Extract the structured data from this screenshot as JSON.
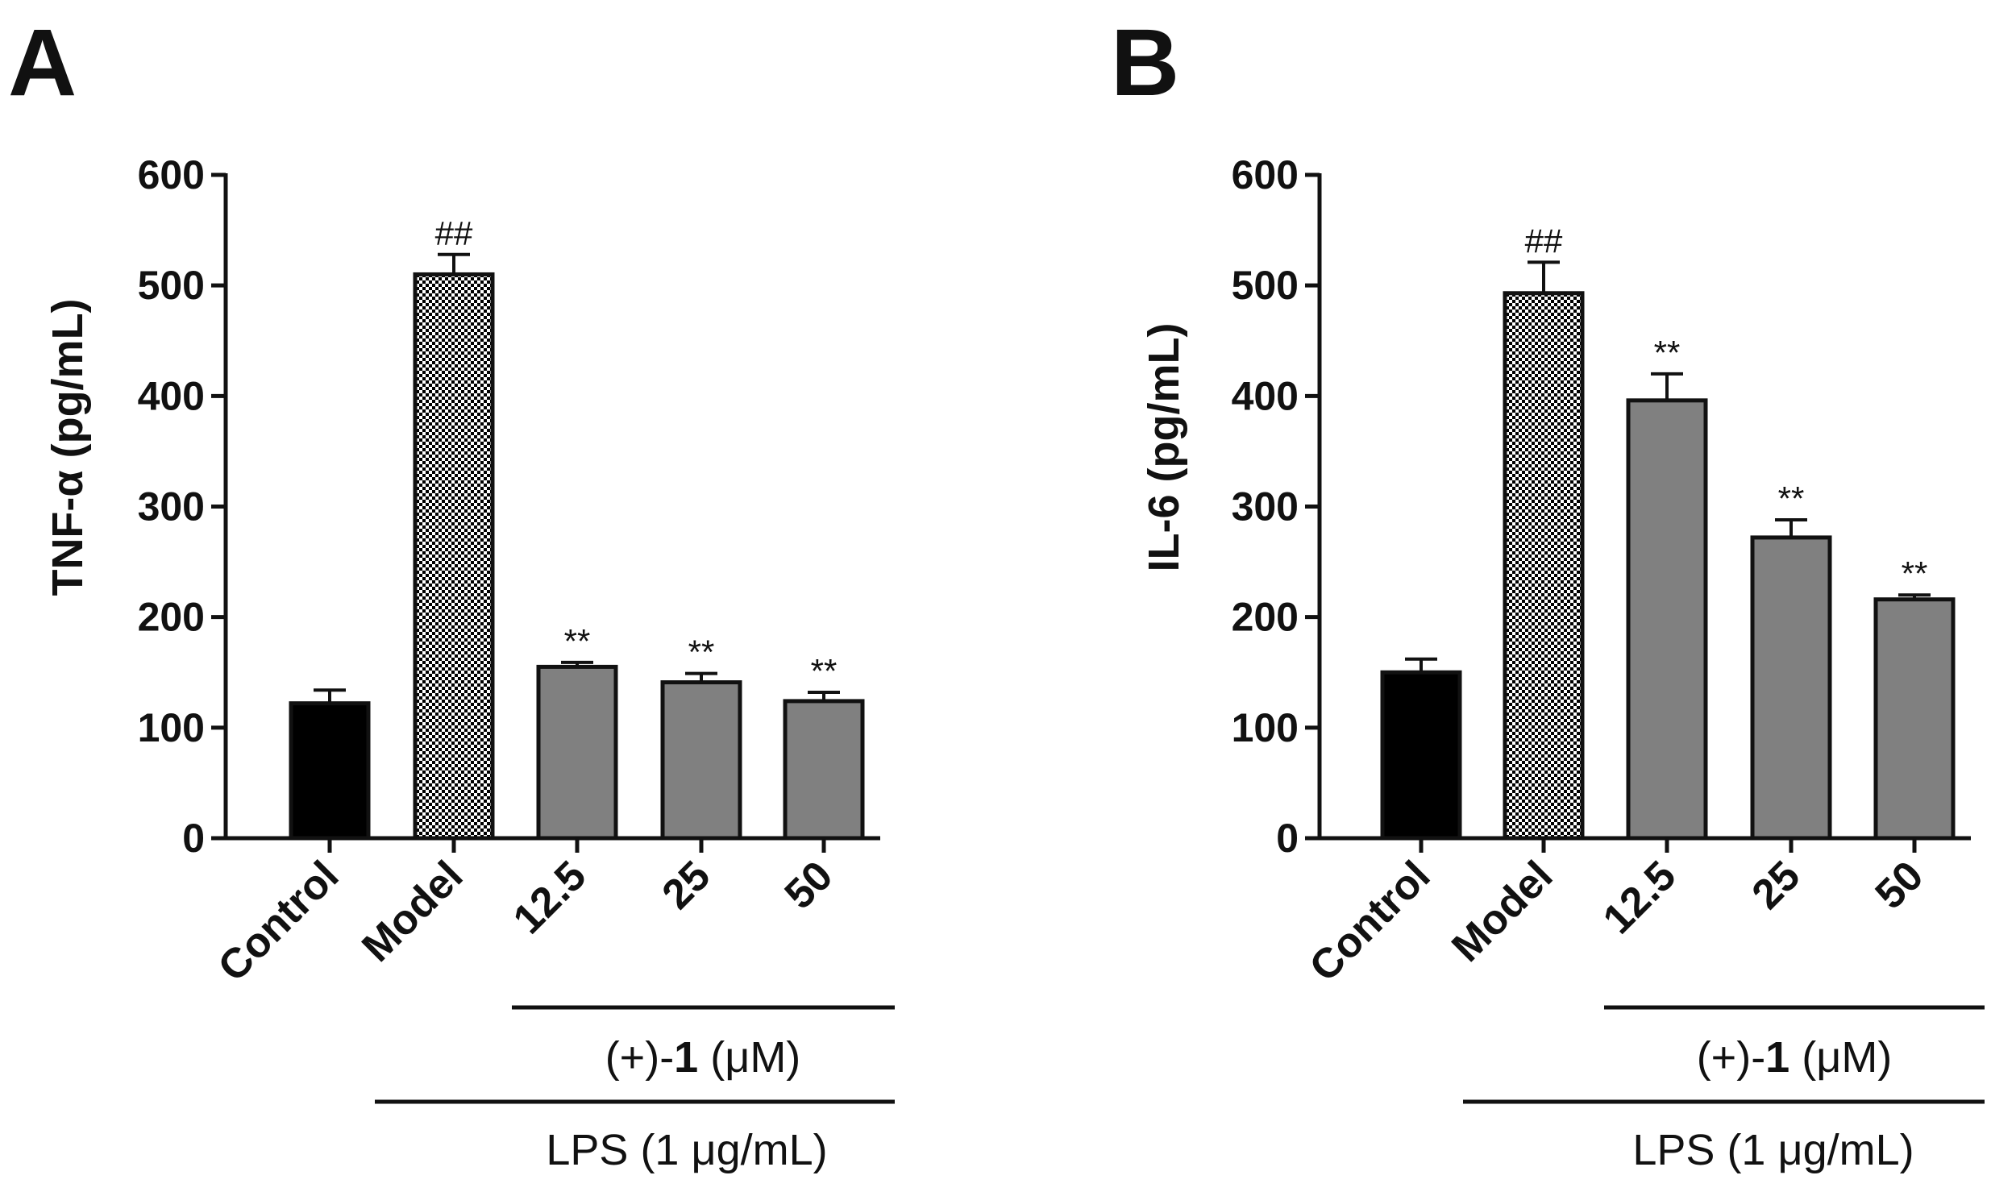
{
  "panels": [
    {
      "letter": "A",
      "ylabel": "TNF-α (pg/mL)",
      "compound_label": {
        "prefix": "(+)-",
        "bold": "1",
        "suffix": " (μM)"
      },
      "lps_label": "LPS (1 μg/mL)"
    },
    {
      "letter": "B",
      "ylabel": "IL-6 (pg/mL)",
      "compound_label": {
        "prefix": "(+)-",
        "bold": "1",
        "suffix": " (μM)"
      },
      "lps_label": "LPS (1 μg/mL)"
    }
  ],
  "chart_data": [
    {
      "type": "bar",
      "title": "",
      "categories": [
        "Control",
        "Model",
        "12.5",
        "25",
        "50"
      ],
      "values": [
        122,
        510,
        155,
        141,
        124
      ],
      "errors": [
        12,
        18,
        4,
        8,
        8
      ],
      "annotations": [
        "",
        "##",
        "**",
        "**",
        "**"
      ],
      "ylabel": "TNF-α (pg/mL)",
      "ylim": [
        0,
        600
      ],
      "yticks": [
        0,
        100,
        200,
        300,
        400,
        500,
        600
      ],
      "bar_styles": [
        "solid-black",
        "checker",
        "gray",
        "gray",
        "gray"
      ],
      "colors": {
        "control": "#000000",
        "treated": "#808080",
        "checker": "#000000"
      }
    },
    {
      "type": "bar",
      "title": "",
      "categories": [
        "Control",
        "Model",
        "12.5",
        "25",
        "50"
      ],
      "values": [
        150,
        493,
        396,
        272,
        216
      ],
      "errors": [
        12,
        28,
        24,
        16,
        4
      ],
      "annotations": [
        "",
        "##",
        "**",
        "**",
        "**"
      ],
      "ylabel": "IL-6 (pg/mL)",
      "ylim": [
        0,
        600
      ],
      "yticks": [
        0,
        100,
        200,
        300,
        400,
        500,
        600
      ],
      "bar_styles": [
        "solid-black",
        "checker",
        "gray",
        "gray",
        "gray"
      ],
      "colors": {
        "control": "#000000",
        "treated": "#808080",
        "checker": "#000000"
      }
    }
  ]
}
